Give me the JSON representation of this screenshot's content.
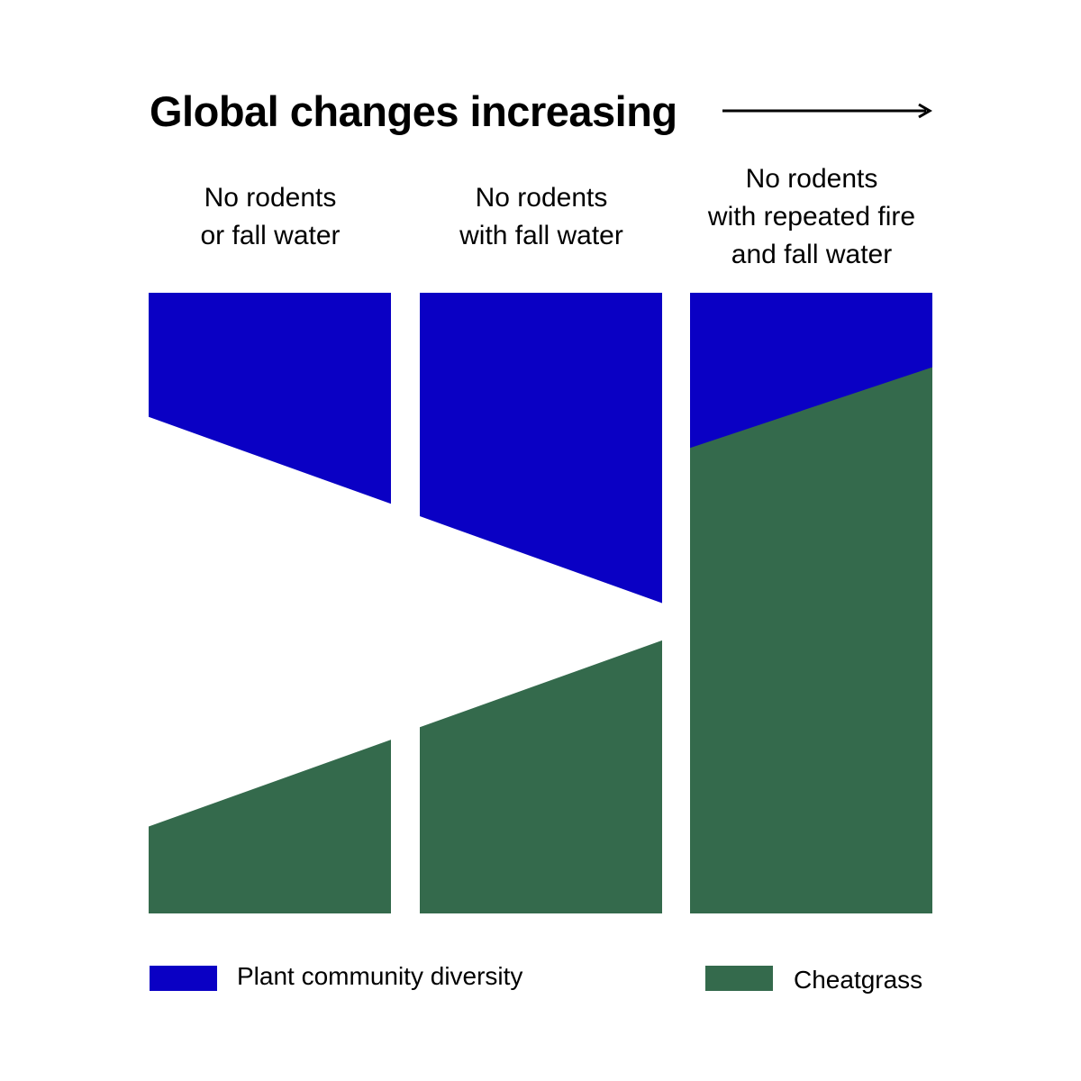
{
  "title": "Global changes increasing",
  "colors": {
    "diversity": "#0a00c4",
    "cheatgrass": "#346a4c",
    "text": "#000000"
  },
  "columns": [
    {
      "label": "No rodents\nor fall water",
      "diversity_bottom_left": 0.8,
      "diversity_bottom_right": 0.66,
      "cheatgrass_top_left": 0.14,
      "cheatgrass_top_right": 0.28
    },
    {
      "label": "No rodents\nwith fall water",
      "diversity_bottom_left": 0.64,
      "diversity_bottom_right": 0.5,
      "cheatgrass_top_left": 0.3,
      "cheatgrass_top_right": 0.44
    },
    {
      "label": "No rodents\nwith repeated fire\nand fall water",
      "diversity_bottom_left": 0.2,
      "diversity_bottom_right": 0.06,
      "cheatgrass_top_left": 0.75,
      "cheatgrass_top_right": 0.88
    }
  ],
  "legend": {
    "diversity_label": "Plant community diversity",
    "cheatgrass_label": "Cheatgrass"
  }
}
